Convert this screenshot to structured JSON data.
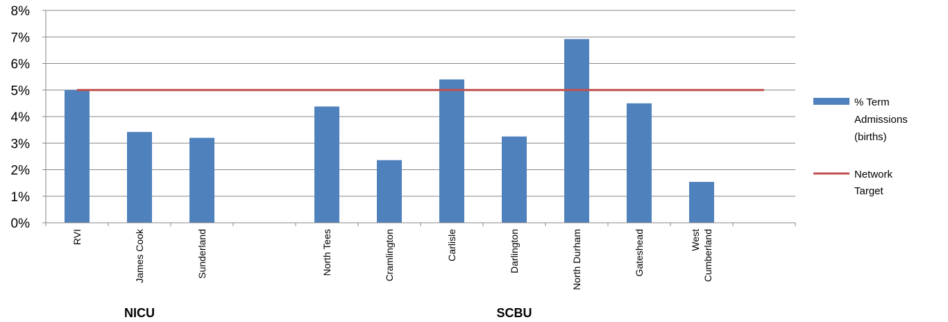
{
  "chart_data": {
    "type": "bar",
    "categories": [
      "RVI",
      "James Cook",
      "Sunderland",
      "",
      "North Tees",
      "Cramlington",
      "Carlisle",
      "Darlington",
      "North Durham",
      "Gateshead",
      "West Cumberland",
      ""
    ],
    "category_label_lines": [
      [
        "RVI"
      ],
      [
        "James Cook"
      ],
      [
        "Sunderland"
      ],
      [],
      [
        "North Tees"
      ],
      [
        "Cramlington"
      ],
      [
        "Carlisle"
      ],
      [
        "Darlington"
      ],
      [
        "North Durham"
      ],
      [
        "Gateshead"
      ],
      [
        "West",
        "Cumberland"
      ],
      []
    ],
    "groups": [
      {
        "label": "NICU",
        "categories": [
          "RVI",
          "James Cook",
          "Sunderland"
        ]
      },
      {
        "label": "SCBU",
        "categories": [
          "North Tees",
          "Cramlington",
          "Carlisle",
          "Darlington",
          "North Durham",
          "Gateshead",
          "West Cumberland"
        ]
      }
    ],
    "series": [
      {
        "name": "% Term Admissions (births)",
        "kind": "bar",
        "color": "#4F81BD",
        "legend_lines": [
          "% Term",
          "Admissions",
          "(births)"
        ],
        "values": [
          5.0,
          3.42,
          3.2,
          null,
          4.38,
          2.36,
          5.4,
          3.25,
          6.92,
          4.5,
          1.54,
          null
        ]
      },
      {
        "name": "Network Target",
        "kind": "line",
        "color": "#C0504D",
        "legend_lines": [
          "Network",
          "Target"
        ],
        "value": 5.0
      }
    ],
    "y_ticks": [
      "0%",
      "1%",
      "2%",
      "3%",
      "4%",
      "5%",
      "6%",
      "7%",
      "8%"
    ],
    "ylim": [
      0,
      8
    ],
    "grid": true,
    "legend_position": "right"
  }
}
